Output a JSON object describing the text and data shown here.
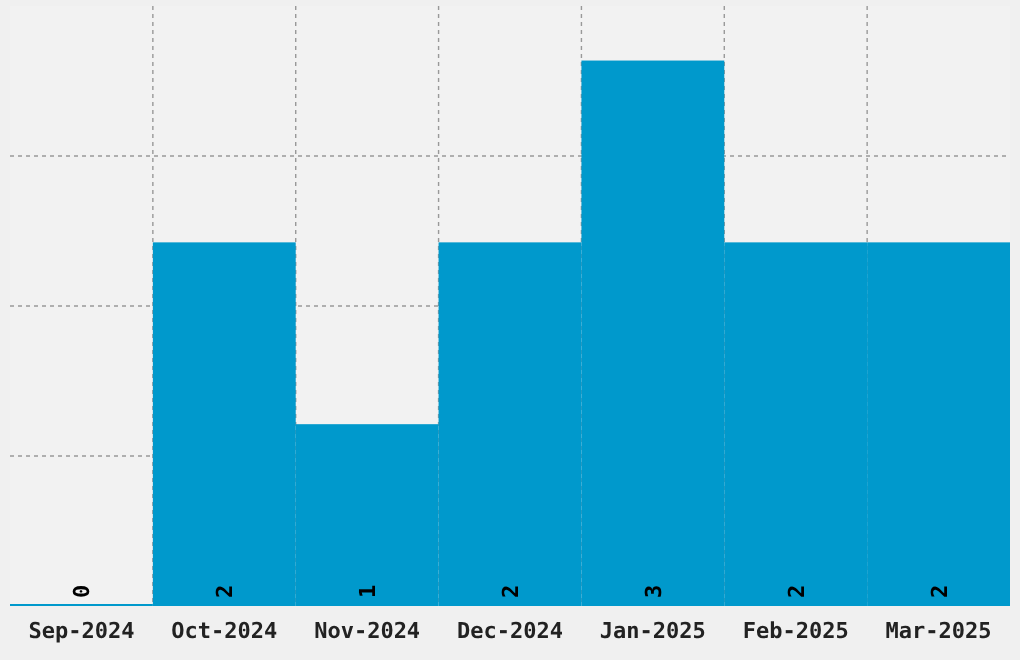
{
  "chart_data": {
    "type": "bar",
    "categories": [
      "Sep-2024",
      "Oct-2024",
      "Nov-2024",
      "Dec-2024",
      "Jan-2025",
      "Feb-2025",
      "Mar-2025"
    ],
    "values": [
      0,
      2,
      1,
      2,
      3,
      2,
      2
    ],
    "color": "#0099cc",
    "data_labels": true,
    "grid": true
  }
}
